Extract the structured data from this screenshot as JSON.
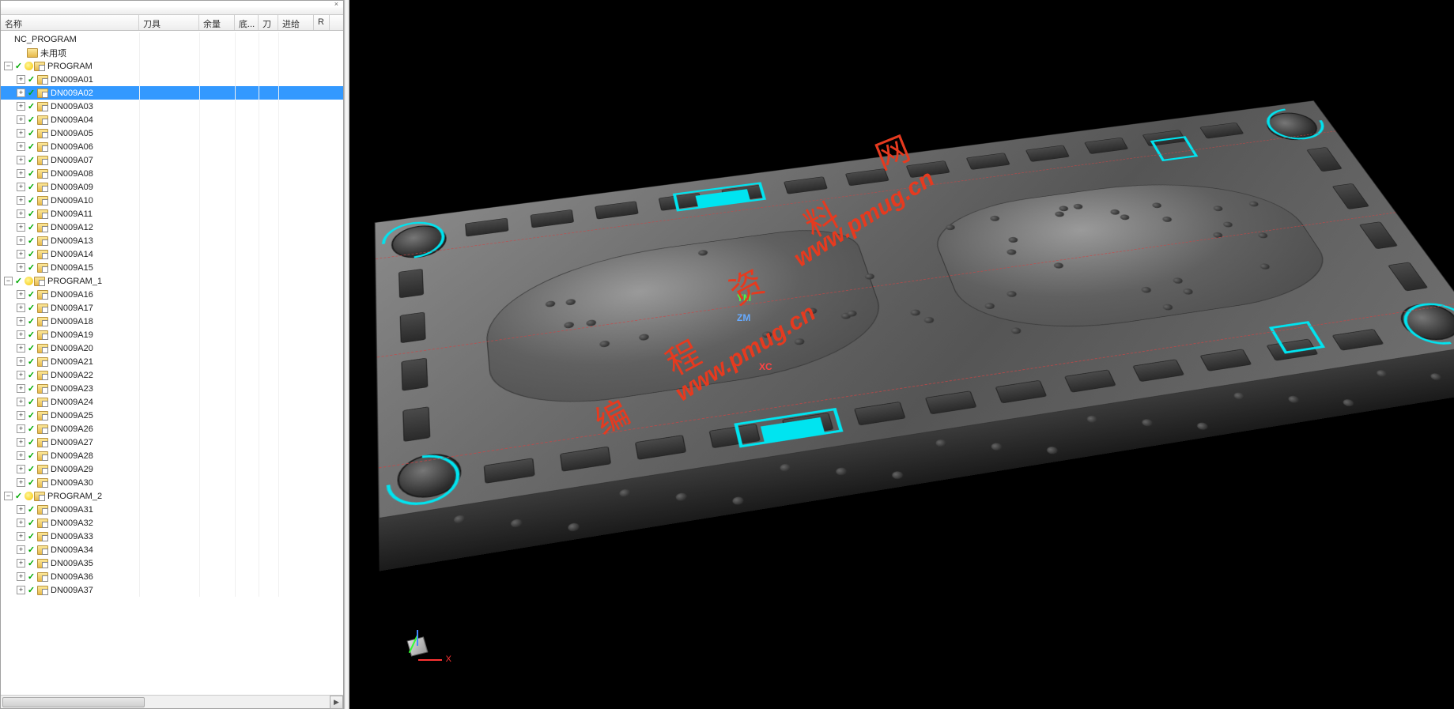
{
  "columns": {
    "name": "名称",
    "tool": "刀具",
    "yuliang": "余量",
    "bottom": "底...",
    "dao": "刀",
    "jinji": "进给",
    "r": "R"
  },
  "root": "NC_PROGRAM",
  "unused": "未用项",
  "groups": [
    {
      "name": "PROGRAM",
      "items": [
        "DN009A01",
        "DN009A02",
        "DN009A03",
        "DN009A04",
        "DN009A05",
        "DN009A06",
        "DN009A07",
        "DN009A08",
        "DN009A09",
        "DN009A10",
        "DN009A11",
        "DN009A12",
        "DN009A13",
        "DN009A14",
        "DN009A15"
      ]
    },
    {
      "name": "PROGRAM_1",
      "items": [
        "DN009A16",
        "DN009A17",
        "DN009A18",
        "DN009A19",
        "DN009A20",
        "DN009A21",
        "DN009A22",
        "DN009A23",
        "DN009A24",
        "DN009A25",
        "DN009A26",
        "DN009A27",
        "DN009A28",
        "DN009A29",
        "DN009A30"
      ]
    },
    {
      "name": "PROGRAM_2",
      "items": [
        "DN009A31",
        "DN009A32",
        "DN009A33",
        "DN009A34",
        "DN009A35",
        "DN009A36",
        "DN009A37"
      ]
    }
  ],
  "selected": "DN009A02",
  "axes": {
    "ym": "YM",
    "zm": "ZM",
    "xc": "XC"
  },
  "wcs": {
    "x": "X"
  },
  "watermark": {
    "t1": "编",
    "t2": "程",
    "t3": "资",
    "t4": "料",
    "t5": "网",
    "url": "www.pmug.cn"
  },
  "colors": {
    "cyan": "#00e4f0",
    "select": "#3399ff",
    "dash": "#c44",
    "wm": "#e63a1f",
    "bg3d": "#000000"
  }
}
